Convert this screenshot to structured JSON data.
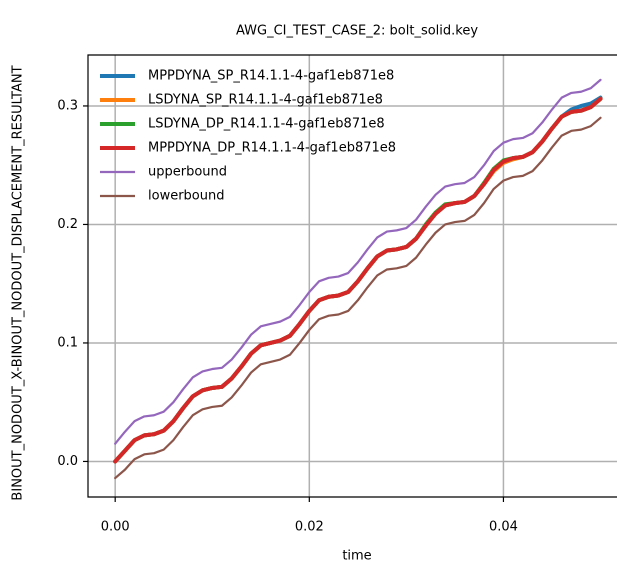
{
  "chart_data": {
    "type": "line",
    "title": "AWG_CI_TEST_CASE_2: bolt_solid.key",
    "xlabel": "time",
    "ylabel": "BINOUT_NODOUT_X-BINOUT_NODOUT_DISPLACEMENT_RESULTANT",
    "x": [
      0,
      0.001,
      0.002,
      0.003,
      0.004,
      0.005,
      0.006,
      0.007,
      0.008,
      0.009,
      0.01,
      0.011,
      0.012,
      0.013,
      0.014,
      0.015,
      0.016,
      0.017,
      0.018,
      0.019,
      0.02,
      0.021,
      0.022,
      0.023,
      0.024,
      0.025,
      0.026,
      0.027,
      0.028,
      0.029,
      0.03,
      0.031,
      0.032,
      0.033,
      0.034,
      0.035,
      0.036,
      0.037,
      0.038,
      0.039,
      0.04,
      0.041,
      0.042,
      0.043,
      0.044,
      0.045,
      0.046,
      0.047,
      0.048,
      0.049,
      0.05
    ],
    "series": [
      {
        "name": "MPPDYNA_SP_R14.1.1-4-gaf1eb871e8",
        "color": "#1f77b4",
        "values": [
          0,
          0.009,
          0.018,
          0.022,
          0.023,
          0.026,
          0.034,
          0.045,
          0.055,
          0.06,
          0.062,
          0.063,
          0.07,
          0.08,
          0.091,
          0.098,
          0.1,
          0.102,
          0.106,
          0.116,
          0.127,
          0.136,
          0.139,
          0.14,
          0.143,
          0.152,
          0.163,
          0.173,
          0.178,
          0.179,
          0.181,
          0.188,
          0.199,
          0.209,
          0.216,
          0.218,
          0.219,
          0.224,
          0.234,
          0.246,
          0.253,
          0.256,
          0.257,
          0.261,
          0.27,
          0.281,
          0.291,
          0.297,
          0.3,
          0.302,
          0.307
        ]
      },
      {
        "name": "LSDYNA_SP_R14.1.1-4-gaf1eb871e8",
        "color": "#ff7f0e",
        "values": [
          0,
          0.009,
          0.018,
          0.022,
          0.023,
          0.026,
          0.034,
          0.045,
          0.055,
          0.06,
          0.062,
          0.063,
          0.07,
          0.08,
          0.091,
          0.098,
          0.1,
          0.102,
          0.106,
          0.116,
          0.127,
          0.136,
          0.139,
          0.14,
          0.143,
          0.152,
          0.163,
          0.173,
          0.178,
          0.179,
          0.181,
          0.188,
          0.199,
          0.209,
          0.216,
          0.218,
          0.219,
          0.224,
          0.234,
          0.245,
          0.252,
          0.255,
          0.257,
          0.261,
          0.27,
          0.281,
          0.291,
          0.295,
          0.296,
          0.299,
          0.306
        ]
      },
      {
        "name": "LSDYNA_DP_R14.1.1-4-gaf1eb871e8",
        "color": "#2ca02c",
        "values": [
          0,
          0.009,
          0.018,
          0.022,
          0.023,
          0.026,
          0.034,
          0.045,
          0.055,
          0.06,
          0.062,
          0.063,
          0.07,
          0.08,
          0.091,
          0.098,
          0.1,
          0.102,
          0.106,
          0.116,
          0.127,
          0.136,
          0.139,
          0.14,
          0.143,
          0.152,
          0.163,
          0.173,
          0.178,
          0.179,
          0.181,
          0.188,
          0.2,
          0.21,
          0.217,
          0.218,
          0.219,
          0.224,
          0.235,
          0.247,
          0.254,
          0.256,
          0.257,
          0.261,
          0.27,
          0.281,
          0.291,
          0.295,
          0.296,
          0.299,
          0.306
        ]
      },
      {
        "name": "MPPDYNA_DP_R14.1.1-4-gaf1eb871e8",
        "color": "#d62728",
        "values": [
          0,
          0.009,
          0.018,
          0.022,
          0.023,
          0.026,
          0.034,
          0.045,
          0.055,
          0.06,
          0.062,
          0.063,
          0.07,
          0.08,
          0.091,
          0.098,
          0.1,
          0.102,
          0.106,
          0.116,
          0.127,
          0.136,
          0.139,
          0.14,
          0.143,
          0.152,
          0.163,
          0.173,
          0.178,
          0.179,
          0.181,
          0.188,
          0.199,
          0.209,
          0.216,
          0.218,
          0.219,
          0.224,
          0.234,
          0.246,
          0.253,
          0.256,
          0.257,
          0.261,
          0.27,
          0.281,
          0.291,
          0.295,
          0.296,
          0.299,
          0.306
        ]
      },
      {
        "name": "upperbound",
        "color": "#9467bd",
        "values": [
          0.015,
          0.025,
          0.034,
          0.038,
          0.039,
          0.042,
          0.05,
          0.061,
          0.071,
          0.076,
          0.078,
          0.079,
          0.086,
          0.096,
          0.107,
          0.114,
          0.116,
          0.118,
          0.122,
          0.132,
          0.143,
          0.152,
          0.155,
          0.156,
          0.159,
          0.168,
          0.179,
          0.189,
          0.194,
          0.195,
          0.197,
          0.204,
          0.215,
          0.225,
          0.232,
          0.234,
          0.235,
          0.24,
          0.25,
          0.262,
          0.269,
          0.272,
          0.273,
          0.277,
          0.286,
          0.297,
          0.307,
          0.311,
          0.312,
          0.315,
          0.322
        ]
      },
      {
        "name": "lowerbound",
        "color": "#8c564b",
        "values": [
          -0.014,
          -0.007,
          0.002,
          0.006,
          0.007,
          0.01,
          0.018,
          0.029,
          0.039,
          0.044,
          0.046,
          0.047,
          0.054,
          0.064,
          0.075,
          0.082,
          0.084,
          0.086,
          0.09,
          0.1,
          0.111,
          0.12,
          0.123,
          0.124,
          0.127,
          0.136,
          0.147,
          0.157,
          0.162,
          0.163,
          0.165,
          0.172,
          0.183,
          0.193,
          0.2,
          0.202,
          0.203,
          0.208,
          0.218,
          0.23,
          0.237,
          0.24,
          0.241,
          0.245,
          0.254,
          0.265,
          0.275,
          0.279,
          0.28,
          0.283,
          0.29
        ]
      }
    ],
    "xlim": [
      -0.0028,
      0.0517
    ],
    "ylim": [
      -0.03,
      0.343
    ],
    "xticks": [
      {
        "value": 0,
        "label": "0.00"
      },
      {
        "value": 0.02,
        "label": "0.02"
      },
      {
        "value": 0.04,
        "label": "0.04"
      }
    ],
    "yticks": [
      {
        "value": 0,
        "label": "0.0"
      },
      0.1,
      0.2,
      0.3
    ],
    "grid": true,
    "legend": "upper left"
  }
}
